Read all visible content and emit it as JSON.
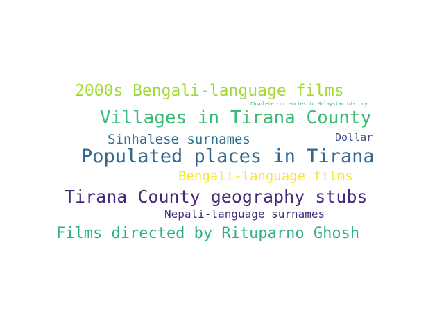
{
  "word_cloud": {
    "words": [
      {
        "text": "2000s Bengali-language films",
        "color": "#a0da39"
      },
      {
        "text": "Obsolete currencies in Malaysian history",
        "color": "#2fb47c"
      },
      {
        "text": "Villages in Tirana County",
        "color": "#3bbb75"
      },
      {
        "text": "Sinhalese surnames",
        "color": "#2e6f8e"
      },
      {
        "text": "Dollar",
        "color": "#3e4c8a"
      },
      {
        "text": "Populated places in Tirana",
        "color": "#31688e"
      },
      {
        "text": "Bengali-language films",
        "color": "#fde725"
      },
      {
        "text": "Tirana County geography stubs",
        "color": "#482878"
      },
      {
        "text": "Nepali-language surnames",
        "color": "#472c7a"
      },
      {
        "text": "Films directed by Rituparno Ghosh",
        "color": "#2db27d"
      }
    ]
  }
}
